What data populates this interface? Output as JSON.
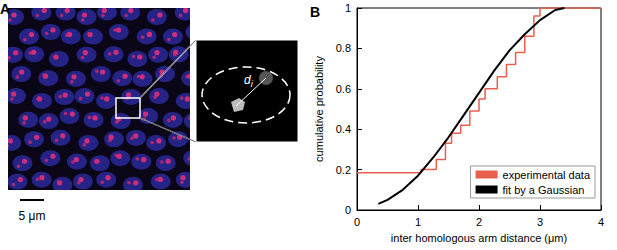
{
  "image_panel": {
    "label": "A",
    "scale_bar": "5 μm",
    "distance_label": "d",
    "distance_subscript": "i"
  },
  "chart_data": {
    "type": "line",
    "title": "B",
    "xlabel": "inter homologous arm distance (μm)",
    "ylabel": "cumulative probability",
    "series": [
      {
        "name": "experimental data",
        "color": "#e8604c",
        "line_style": "step",
        "x": [
          0,
          1.05,
          1.3,
          1.45,
          1.55,
          1.7,
          1.85,
          2.0,
          2.1,
          2.3,
          2.45,
          2.6,
          2.75,
          2.9,
          3.0,
          4
        ],
        "values": [
          0.185,
          0.2,
          0.25,
          0.33,
          0.38,
          0.42,
          0.49,
          0.55,
          0.6,
          0.66,
          0.72,
          0.78,
          0.86,
          0.96,
          1.0,
          1.0
        ]
      },
      {
        "name": "fit by a Gaussian",
        "color": "#000000",
        "line_style": "solid",
        "x": [
          0.35,
          0.5,
          0.75,
          1.0,
          1.25,
          1.5,
          1.75,
          2.0,
          2.25,
          2.5,
          2.75,
          3.0,
          3.25,
          3.4
        ],
        "values": [
          0.03,
          0.05,
          0.1,
          0.17,
          0.26,
          0.36,
          0.47,
          0.58,
          0.69,
          0.79,
          0.87,
          0.94,
          0.99,
          1.0
        ]
      }
    ],
    "xlim": [
      0,
      4
    ],
    "xticks": [
      0,
      1,
      2,
      3,
      4
    ],
    "ylim": [
      0,
      1
    ],
    "yticks": [
      0,
      0.2,
      0.4,
      0.6,
      0.8,
      1
    ],
    "legend": "lower right",
    "grid": false
  }
}
